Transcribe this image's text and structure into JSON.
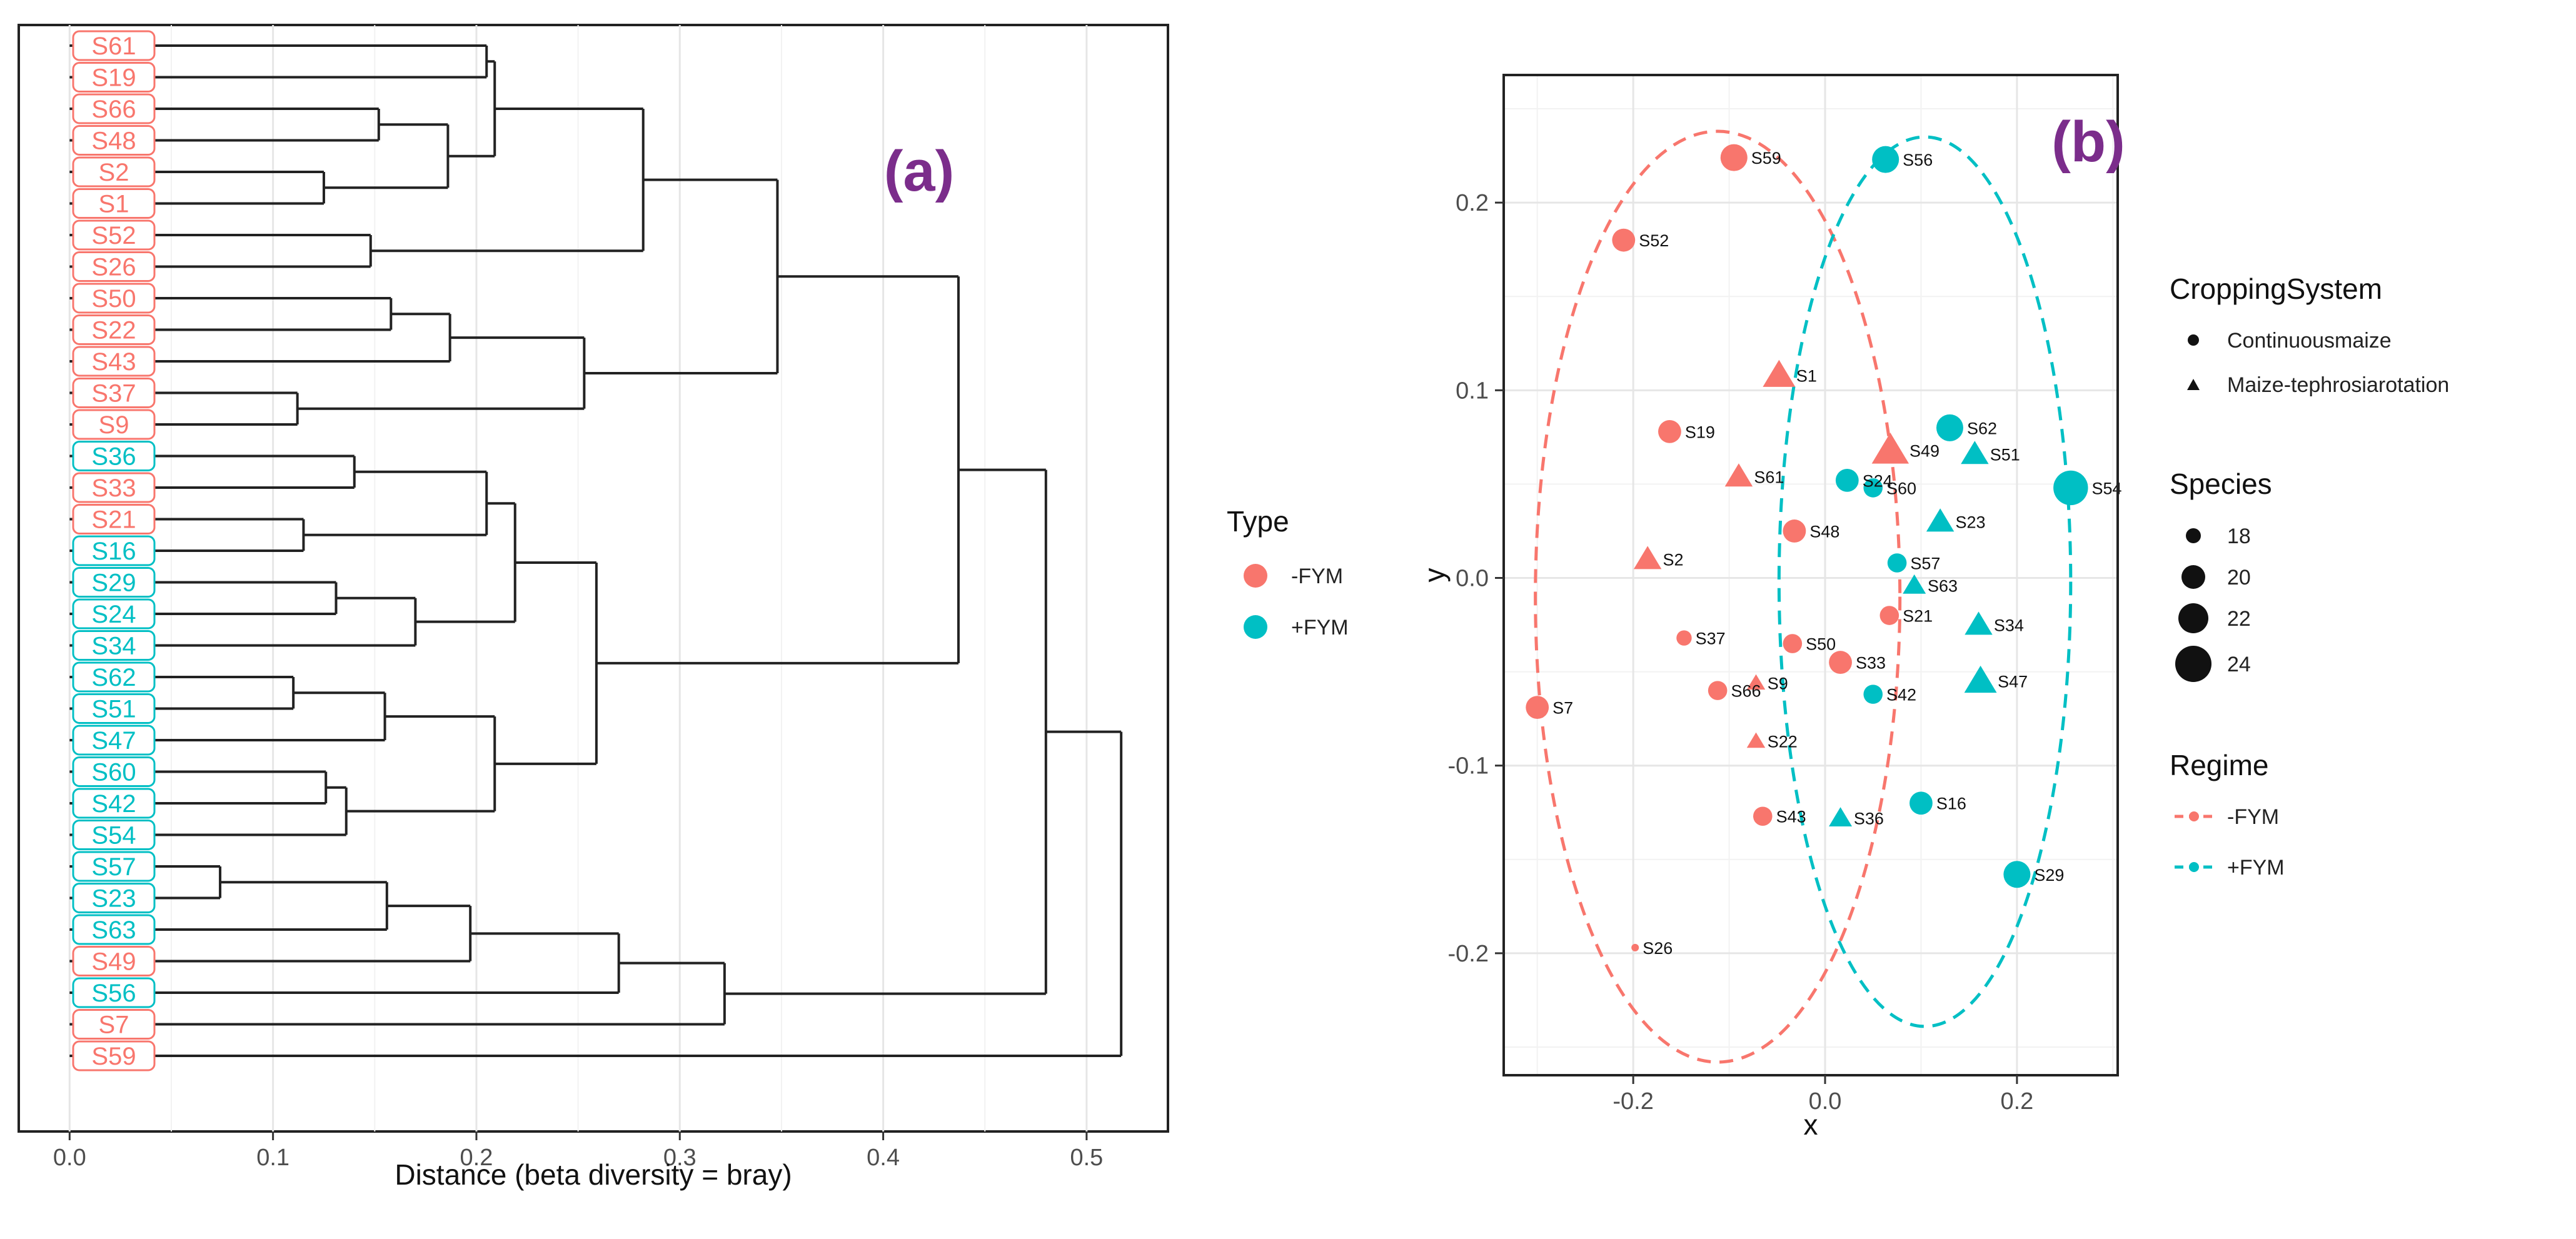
{
  "colors": {
    "minus_fym": "#f8766d",
    "plus_fym": "#00bfc4"
  },
  "chart_data": [
    {
      "type": "dendrogram",
      "panel_tag": "(a)",
      "xlabel": "Distance (beta diversity = bray)",
      "xlim": [
        -0.025,
        0.54
      ],
      "xticks": [
        "0.0",
        "0.1",
        "0.2",
        "0.3",
        "0.4",
        "0.5"
      ],
      "tick_values": [
        0.0,
        0.1,
        0.2,
        0.3,
        0.4,
        0.5
      ],
      "leaves": [
        {
          "label": "S61",
          "type": "-FYM"
        },
        {
          "label": "S19",
          "type": "-FYM"
        },
        {
          "label": "S66",
          "type": "-FYM"
        },
        {
          "label": "S48",
          "type": "-FYM"
        },
        {
          "label": "S2",
          "type": "-FYM"
        },
        {
          "label": "S1",
          "type": "-FYM"
        },
        {
          "label": "S52",
          "type": "-FYM"
        },
        {
          "label": "S26",
          "type": "-FYM"
        },
        {
          "label": "S50",
          "type": "-FYM"
        },
        {
          "label": "S22",
          "type": "-FYM"
        },
        {
          "label": "S43",
          "type": "-FYM"
        },
        {
          "label": "S37",
          "type": "-FYM"
        },
        {
          "label": "S9",
          "type": "-FYM"
        },
        {
          "label": "S36",
          "type": "+FYM"
        },
        {
          "label": "S33",
          "type": "-FYM"
        },
        {
          "label": "S21",
          "type": "-FYM"
        },
        {
          "label": "S16",
          "type": "+FYM"
        },
        {
          "label": "S29",
          "type": "+FYM"
        },
        {
          "label": "S24",
          "type": "+FYM"
        },
        {
          "label": "S34",
          "type": "+FYM"
        },
        {
          "label": "S62",
          "type": "+FYM"
        },
        {
          "label": "S51",
          "type": "+FYM"
        },
        {
          "label": "S47",
          "type": "+FYM"
        },
        {
          "label": "S60",
          "type": "+FYM"
        },
        {
          "label": "S42",
          "type": "+FYM"
        },
        {
          "label": "S54",
          "type": "+FYM"
        },
        {
          "label": "S57",
          "type": "+FYM"
        },
        {
          "label": "S23",
          "type": "+FYM"
        },
        {
          "label": "S63",
          "type": "+FYM"
        },
        {
          "label": "S49",
          "type": "-FYM"
        },
        {
          "label": "S56",
          "type": "+FYM"
        },
        {
          "label": "S7",
          "type": "-FYM"
        },
        {
          "label": "S59",
          "type": "-FYM"
        }
      ],
      "merges": [
        {
          "id": "m1",
          "a": "S61",
          "b": "S19",
          "height": 0.205
        },
        {
          "id": "m2",
          "a": "S66",
          "b": "S48",
          "height": 0.152
        },
        {
          "id": "m3",
          "a": "S2",
          "b": "S1",
          "height": 0.125
        },
        {
          "id": "m4",
          "a": "m3",
          "b": "m2",
          "height": 0.186
        },
        {
          "id": "m5",
          "a": "m1",
          "b": "m4",
          "height": 0.209
        },
        {
          "id": "m6",
          "a": "S52",
          "b": "S26",
          "height": 0.148
        },
        {
          "id": "m7",
          "a": "m5",
          "b": "m6",
          "height": 0.282
        },
        {
          "id": "m8",
          "a": "S50",
          "b": "S22",
          "height": 0.158
        },
        {
          "id": "m9",
          "a": "m8",
          "b": "S43",
          "height": 0.187
        },
        {
          "id": "m10",
          "a": "S37",
          "b": "S9",
          "height": 0.112
        },
        {
          "id": "m11",
          "a": "m9",
          "b": "m10",
          "height": 0.253
        },
        {
          "id": "m12",
          "a": "m7",
          "b": "m11",
          "height": 0.348
        },
        {
          "id": "m13",
          "a": "S36",
          "b": "S33",
          "height": 0.14
        },
        {
          "id": "m14",
          "a": "S21",
          "b": "S16",
          "height": 0.115
        },
        {
          "id": "m15",
          "a": "m13",
          "b": "m14",
          "height": 0.205
        },
        {
          "id": "m16",
          "a": "S29",
          "b": "S24",
          "height": 0.131
        },
        {
          "id": "m17",
          "a": "m16",
          "b": "S34",
          "height": 0.17
        },
        {
          "id": "m18",
          "a": "m15",
          "b": "m17",
          "height": 0.219
        },
        {
          "id": "m19",
          "a": "S62",
          "b": "S51",
          "height": 0.11
        },
        {
          "id": "m20",
          "a": "m19",
          "b": "S47",
          "height": 0.155
        },
        {
          "id": "m21",
          "a": "S60",
          "b": "S42",
          "height": 0.126
        },
        {
          "id": "m22",
          "a": "m21",
          "b": "S54",
          "height": 0.136
        },
        {
          "id": "m23",
          "a": "m20",
          "b": "m22",
          "height": 0.209
        },
        {
          "id": "m24",
          "a": "m18",
          "b": "m23",
          "height": 0.259
        },
        {
          "id": "m25",
          "a": "m12",
          "b": "m24",
          "height": 0.437
        },
        {
          "id": "m26",
          "a": "S57",
          "b": "S23",
          "height": 0.074
        },
        {
          "id": "m27",
          "a": "m26",
          "b": "S63",
          "height": 0.156
        },
        {
          "id": "m28",
          "a": "m27",
          "b": "S49",
          "height": 0.197
        },
        {
          "id": "m29",
          "a": "m28",
          "b": "S56",
          "height": 0.27
        },
        {
          "id": "m30",
          "a": "m29",
          "b": "S7",
          "height": 0.322
        },
        {
          "id": "m31",
          "a": "m25",
          "b": "m30",
          "height": 0.48
        },
        {
          "id": "m32",
          "a": "m31",
          "b": "S59",
          "height": 0.517
        }
      ]
    },
    {
      "type": "scatter",
      "panel_tag": "(b)",
      "xlabel": "x",
      "ylabel": "y",
      "xlim": [
        -0.335,
        0.305
      ],
      "ylim": [
        -0.265,
        0.268
      ],
      "xticks": [
        "-0.2",
        "0.0",
        "0.2"
      ],
      "xtick_values": [
        -0.2,
        0.0,
        0.2
      ],
      "yticks": [
        "0.2",
        "0.1",
        "0.0",
        "-0.1",
        "-0.2"
      ],
      "ytick_values": [
        0.2,
        0.1,
        0.0,
        -0.1,
        -0.2
      ],
      "points": [
        {
          "label": "S59",
          "x": -0.095,
          "y": 0.224,
          "type": "-FYM",
          "shape": "circle",
          "species": 22
        },
        {
          "label": "S52",
          "x": -0.21,
          "y": 0.18,
          "type": "-FYM",
          "shape": "circle",
          "species": 21
        },
        {
          "label": "S1",
          "x": -0.048,
          "y": 0.108,
          "type": "-FYM",
          "shape": "triangle",
          "species": 22
        },
        {
          "label": "S19",
          "x": -0.162,
          "y": 0.078,
          "type": "-FYM",
          "shape": "circle",
          "species": 21
        },
        {
          "label": "S61",
          "x": -0.09,
          "y": 0.054,
          "type": "-FYM",
          "shape": "triangle",
          "species": 21
        },
        {
          "label": "S48",
          "x": -0.032,
          "y": 0.025,
          "type": "-FYM",
          "shape": "circle",
          "species": 21
        },
        {
          "label": "S2",
          "x": -0.185,
          "y": 0.01,
          "type": "-FYM",
          "shape": "triangle",
          "species": 21
        },
        {
          "label": "S49",
          "x": 0.068,
          "y": 0.068,
          "type": "-FYM",
          "shape": "triangle",
          "species": 23
        },
        {
          "label": "S37",
          "x": -0.147,
          "y": -0.032,
          "type": "-FYM",
          "shape": "circle",
          "species": 19
        },
        {
          "label": "S50",
          "x": -0.034,
          "y": -0.035,
          "type": "-FYM",
          "shape": "circle",
          "species": 20
        },
        {
          "label": "S33",
          "x": 0.016,
          "y": -0.045,
          "type": "-FYM",
          "shape": "circle",
          "species": 21
        },
        {
          "label": "S21",
          "x": 0.067,
          "y": -0.02,
          "type": "-FYM",
          "shape": "circle",
          "species": 20
        },
        {
          "label": "S66",
          "x": -0.112,
          "y": -0.06,
          "type": "-FYM",
          "shape": "circle",
          "species": 20
        },
        {
          "label": "S9",
          "x": -0.072,
          "y": -0.056,
          "type": "-FYM",
          "shape": "triangle",
          "species": 19
        },
        {
          "label": "S7",
          "x": -0.3,
          "y": -0.069,
          "type": "-FYM",
          "shape": "circle",
          "species": 21
        },
        {
          "label": "S22",
          "x": -0.072,
          "y": -0.087,
          "type": "-FYM",
          "shape": "triangle",
          "species": 19
        },
        {
          "label": "S43",
          "x": -0.065,
          "y": -0.127,
          "type": "-FYM",
          "shape": "circle",
          "species": 20
        },
        {
          "label": "S26",
          "x": -0.198,
          "y": -0.197,
          "type": "-FYM",
          "shape": "circle",
          "species": 17
        },
        {
          "label": "S56",
          "x": 0.063,
          "y": 0.223,
          "type": "+FYM",
          "shape": "circle",
          "species": 22
        },
        {
          "label": "S62",
          "x": 0.13,
          "y": 0.08,
          "type": "+FYM",
          "shape": "circle",
          "species": 22
        },
        {
          "label": "S51",
          "x": 0.156,
          "y": 0.066,
          "type": "+FYM",
          "shape": "triangle",
          "species": 21
        },
        {
          "label": "S54",
          "x": 0.256,
          "y": 0.048,
          "type": "+FYM",
          "shape": "circle",
          "species": 24
        },
        {
          "label": "S24",
          "x": 0.023,
          "y": 0.052,
          "type": "+FYM",
          "shape": "circle",
          "species": 21
        },
        {
          "label": "S60",
          "x": 0.05,
          "y": 0.048,
          "type": "+FYM",
          "shape": "circle",
          "species": 20
        },
        {
          "label": "S23",
          "x": 0.12,
          "y": 0.03,
          "type": "+FYM",
          "shape": "triangle",
          "species": 21
        },
        {
          "label": "S57",
          "x": 0.075,
          "y": 0.008,
          "type": "+FYM",
          "shape": "circle",
          "species": 20
        },
        {
          "label": "S63",
          "x": 0.093,
          "y": -0.004,
          "type": "+FYM",
          "shape": "triangle",
          "species": 20
        },
        {
          "label": "S34",
          "x": 0.16,
          "y": -0.025,
          "type": "+FYM",
          "shape": "triangle",
          "species": 21
        },
        {
          "label": "S47",
          "x": 0.162,
          "y": -0.055,
          "type": "+FYM",
          "shape": "triangle",
          "species": 22
        },
        {
          "label": "S42",
          "x": 0.05,
          "y": -0.062,
          "type": "+FYM",
          "shape": "circle",
          "species": 20
        },
        {
          "label": "S36",
          "x": 0.016,
          "y": -0.128,
          "type": "+FYM",
          "shape": "triangle",
          "species": 20
        },
        {
          "label": "S16",
          "x": 0.1,
          "y": -0.12,
          "type": "+FYM",
          "shape": "circle",
          "species": 21
        },
        {
          "label": "S29",
          "x": 0.2,
          "y": -0.158,
          "type": "+FYM",
          "shape": "circle",
          "species": 22
        }
      ],
      "ellipses": [
        {
          "regime": "-FYM",
          "cx": -0.112,
          "cy": -0.01,
          "rx": 0.19,
          "ry": 0.248
        },
        {
          "regime": "+FYM",
          "cx": 0.104,
          "cy": -0.002,
          "rx": 0.152,
          "ry": 0.237
        }
      ]
    }
  ],
  "legends": {
    "type": {
      "title": "Type",
      "items": [
        "-FYM",
        "+FYM"
      ]
    },
    "cropping": {
      "title": "CroppingSystem",
      "items": [
        "Continuousmaize",
        "Maize-tephrosiarotation"
      ]
    },
    "species": {
      "title": "Species",
      "items": [
        "18",
        "20",
        "22",
        "24"
      ],
      "values": [
        18,
        20,
        22,
        24
      ]
    },
    "regime": {
      "title": "Regime",
      "items": [
        "-FYM",
        "+FYM"
      ]
    }
  }
}
